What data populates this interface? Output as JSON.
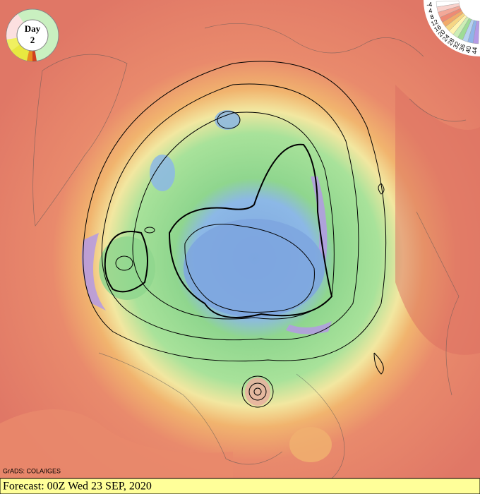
{
  "badge": {
    "label": "Day",
    "day": "2"
  },
  "legend": {
    "labels": [
      "-4",
      "4",
      "8",
      "12",
      "16",
      "20",
      "24",
      "28",
      "32",
      "36",
      "40",
      "44"
    ],
    "colors": [
      "#ffffff",
      "#f9d2cc",
      "#f3a898",
      "#ee8a74",
      "#f2aa6a",
      "#f6d684",
      "#fff4b0",
      "#cdeeb6",
      "#9edc96",
      "#b8d2f0",
      "#8fb4e8",
      "#b49ae6"
    ]
  },
  "credit": "GrADS: COLA/IGES",
  "footer": "Forecast: 00Z Wed 23 SEP, 2020"
}
